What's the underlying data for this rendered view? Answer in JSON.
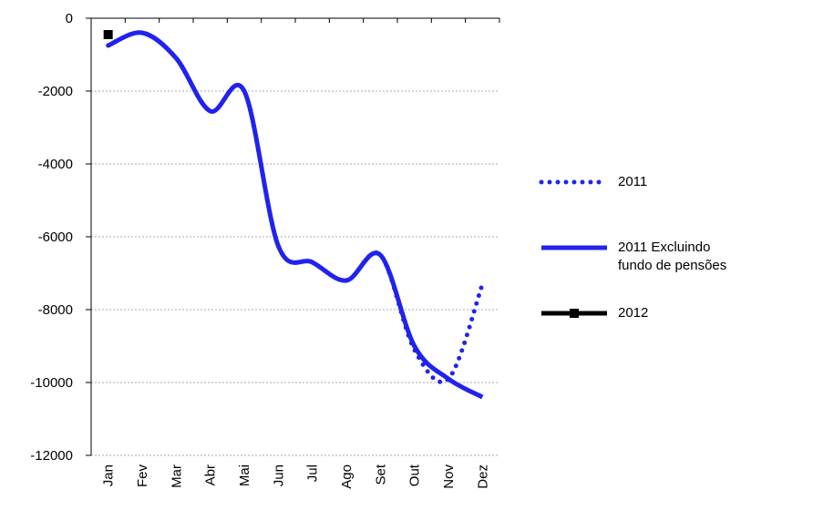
{
  "chart_data": {
    "type": "line",
    "categories": [
      "Jan",
      "Fev",
      "Mar",
      "Abr",
      "Mai",
      "Jun",
      "Jul",
      "Ago",
      "Set",
      "Out",
      "Nov",
      "Dez"
    ],
    "series": [
      {
        "name": "2011",
        "color": "#2222ee",
        "style": "dotted",
        "values": [
          -750,
          -400,
          -1100,
          -2550,
          -2000,
          -6250,
          -6700,
          -7200,
          -6500,
          -9100,
          -9900,
          -7300
        ]
      },
      {
        "name": "2011 Excluindo fundo de pensões",
        "color": "#2222ee",
        "style": "solid",
        "values": [
          -750,
          -400,
          -1100,
          -2550,
          -2000,
          -6250,
          -6700,
          -7200,
          -6500,
          -9000,
          -9900,
          -10400
        ]
      },
      {
        "name": "2012",
        "color": "#000000",
        "style": "marker",
        "values": [
          -450,
          null,
          null,
          null,
          null,
          null,
          null,
          null,
          null,
          null,
          null,
          null
        ]
      }
    ],
    "ylim": [
      -12000,
      0
    ],
    "yticks": [
      0,
      -2000,
      -4000,
      -6000,
      -8000,
      -10000,
      -12000
    ],
    "grid": true
  }
}
